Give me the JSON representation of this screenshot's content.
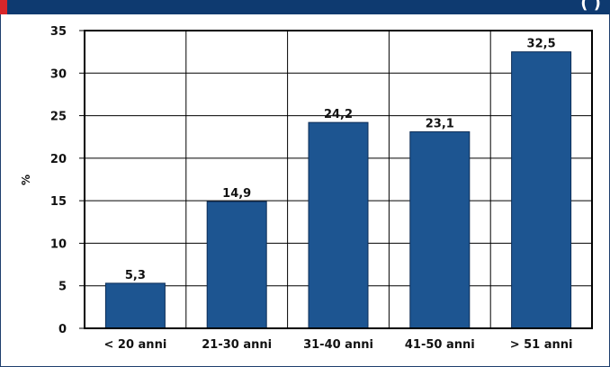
{
  "header": {
    "bar_color": "#0e3a70",
    "accent_color": "#d8262a",
    "corner_glyph": "( )"
  },
  "chart_data": {
    "type": "bar",
    "categories": [
      "< 20 anni",
      "21-30 anni",
      "31-40 anni",
      "41-50 anni",
      "> 51 anni"
    ],
    "values": [
      5.3,
      14.9,
      24.2,
      23.1,
      32.5
    ],
    "value_labels": [
      "5,3",
      "14,9",
      "24,2",
      "23,1",
      "32,5"
    ],
    "title": "",
    "xlabel": "",
    "ylabel": "%",
    "ylim": [
      0,
      35
    ],
    "yticks": [
      0,
      5,
      10,
      15,
      20,
      25,
      30,
      35
    ],
    "grid": true,
    "bar_color": "#1d5591"
  }
}
